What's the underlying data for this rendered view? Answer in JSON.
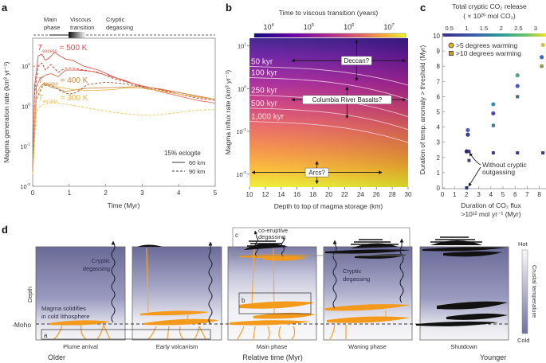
{
  "panels": {
    "a": {
      "label": "a"
    },
    "b": {
      "label": "b"
    },
    "c": {
      "label": "c"
    },
    "d": {
      "label": "d"
    }
  },
  "chart_data": [
    {
      "id": "a",
      "type": "line",
      "title": "",
      "xlabel": "Time (Myr)",
      "ylabel": "Magma generation rate (km³ yr⁻¹)",
      "yscale": "log",
      "xlim": [
        0,
        5
      ],
      "ylim": [
        0.01,
        50
      ],
      "xticks": [
        "0",
        "1",
        "2",
        "3",
        "4",
        "5"
      ],
      "yticks": [
        {
          "v": 10,
          "base": "10",
          "exp": "1"
        },
        {
          "v": 1,
          "base": "10",
          "exp": "0"
        },
        {
          "v": 0.1,
          "base": "10",
          "exp": "-1"
        },
        {
          "v": 0.01,
          "base": "10",
          "exp": "-2"
        }
      ],
      "phase_bar": {
        "labels": [
          [
            "Main",
            "phase"
          ],
          [
            "Viscous",
            "transition"
          ],
          [
            "Cryptic",
            "degassing"
          ]
        ]
      },
      "annotations": [
        {
          "text": "T",
          "sub": "excess",
          "rest": " = 500 K",
          "color": "#d9534a"
        },
        {
          "text": "T",
          "sub": "excess",
          "rest": " = 400 K",
          "color": "#c98a4a"
        },
        {
          "text": "T",
          "sub": "excess",
          "rest": " = 300 K",
          "color": "#e6b84a"
        }
      ],
      "legend": {
        "title": "15% eclogite",
        "entries": [
          {
            "label": "60 km",
            "style": "solid"
          },
          {
            "label": "90 km",
            "style": "dashed"
          }
        ],
        "placement": "bottom-right"
      },
      "series": [
        {
          "name": "500 K, 60 km",
          "color": "#d9534a",
          "dash": false,
          "x": [
            0,
            0.05,
            0.15,
            0.25,
            0.35,
            0.45,
            0.6,
            0.75,
            0.9,
            1.1,
            1.4,
            1.8,
            2.2,
            2.6,
            3.0,
            3.5,
            4.0,
            4.5,
            5.0
          ],
          "y": [
            0.02,
            3,
            18,
            20,
            14,
            16,
            22,
            18,
            15,
            14,
            10,
            8,
            5.5,
            4,
            3.2,
            2.6,
            2.2,
            1.8,
            1.5
          ]
        },
        {
          "name": "500 K, 90 km",
          "color": "#c0392b",
          "dash": true,
          "x": [
            0,
            0.05,
            0.15,
            0.25,
            0.35,
            0.5,
            0.7,
            0.9,
            1.1,
            1.4,
            1.8,
            2.2,
            2.6,
            3.0,
            3.5,
            4.0,
            4.5,
            5.0
          ],
          "y": [
            0.02,
            2,
            10,
            12,
            8,
            11,
            7,
            9,
            9,
            8,
            7,
            5,
            4,
            3.2,
            2.6,
            2.0,
            1.6,
            1.4
          ]
        },
        {
          "name": "500 K, 60 km (lower)",
          "color": "#e06a5a",
          "dash": false,
          "x": [
            0,
            0.1,
            0.2,
            0.35,
            0.5,
            0.7,
            0.9,
            1.2,
            1.6,
            2.0,
            2.5,
            3.0,
            3.5,
            4.0,
            4.5,
            5.0
          ],
          "y": [
            0.02,
            3,
            5,
            6,
            6.5,
            5.5,
            8,
            8,
            7.5,
            6,
            4.5,
            3,
            2.3,
            1.8,
            1.4,
            1.2
          ]
        },
        {
          "name": "400 K, 60 km",
          "color": "#c98a4a",
          "dash": false,
          "x": [
            0,
            0.1,
            0.2,
            0.3,
            0.5,
            0.7,
            0.9,
            1.0,
            1.2,
            1.5,
            2.0,
            2.5,
            3.0,
            3.5,
            4.0,
            4.5,
            5.0
          ],
          "y": [
            0.02,
            2,
            3,
            3.6,
            3.0,
            2.7,
            2.3,
            2.4,
            2.6,
            2.8,
            2.9,
            3,
            3.1,
            2.7,
            2.2,
            1.8,
            1.5
          ]
        },
        {
          "name": "400 K, 90 km",
          "color": "#a0522d",
          "dash": true,
          "x": [
            0,
            0.1,
            0.25,
            0.4,
            0.6,
            0.8,
            1.0,
            1.2,
            1.5,
            2.0,
            2.5,
            3.0,
            3.5,
            4.0,
            4.5,
            5.0
          ],
          "y": [
            0.02,
            1.5,
            3,
            3.5,
            3.0,
            2.3,
            2.0,
            2.2,
            3.5,
            4,
            3.7,
            3.0,
            2.4,
            2.0,
            1.7,
            1.5
          ]
        },
        {
          "name": "300 K, 60 km",
          "color": "#e6b84a",
          "dash": false,
          "x": [
            0,
            0.1,
            0.2,
            0.3,
            0.5,
            0.7,
            0.9,
            1.1,
            1.4,
            1.8,
            2.2,
            2.6,
            3.0,
            3.5,
            4.0,
            4.5,
            5.0
          ],
          "y": [
            0.02,
            2,
            3,
            3.8,
            3.4,
            3.0,
            2.8,
            2.6,
            2.5,
            2.5,
            2.6,
            2.9,
            2.8,
            2.4,
            2.0,
            1.7,
            1.5
          ]
        },
        {
          "name": "300 K, 90 km",
          "color": "#f0c850",
          "dash": true,
          "x": [
            0,
            0.1,
            0.2,
            0.35,
            0.5,
            0.7,
            1.0,
            1.5,
            2.0,
            2.5,
            3.0,
            3.5,
            4.0,
            4.5,
            5.0
          ],
          "y": [
            0.02,
            0.7,
            1.0,
            1.15,
            1.2,
            1.2,
            1.1,
            0.9,
            0.75,
            0.65,
            0.6,
            0.62,
            0.7,
            0.8,
            0.82
          ]
        }
      ]
    },
    {
      "id": "b",
      "type": "heatmap",
      "title": "Time to viscous transition (years)",
      "xlabel": "Depth to top of magma storage (km)",
      "ylabel": "Magma influx rate (km³ yr⁻¹)",
      "xlim": [
        10,
        30
      ],
      "ylim": [
        0.005,
        15
      ],
      "yscale": "log",
      "xticks": [
        "10",
        "12",
        "14",
        "16",
        "18",
        "20",
        "22",
        "24",
        "26",
        "28",
        "30"
      ],
      "yticks": [
        {
          "v": 10,
          "base": "10",
          "exp": "1"
        },
        {
          "v": 1,
          "base": "10",
          "exp": "0"
        },
        {
          "v": 0.1,
          "base": "10",
          "exp": "-1"
        },
        {
          "v": 0.01,
          "base": "10",
          "exp": "-2"
        }
      ],
      "colorbar": {
        "scale": "log",
        "range": [
          5000,
          30000000
        ],
        "ticks": [
          {
            "v": 10000,
            "base": "10",
            "exp": "4"
          },
          {
            "v": 100000,
            "base": "10",
            "exp": "5"
          },
          {
            "v": 1000000,
            "base": "10",
            "exp": "6"
          },
          {
            "v": 10000000,
            "base": "10",
            "exp": "7"
          }
        ],
        "colormap": "plasma"
      },
      "contours": [
        {
          "label": "50 kyr",
          "y_at_x10": 3.3,
          "y_at_x30": 1.2
        },
        {
          "label": "100 kyr",
          "y_at_x10": 1.8,
          "y_at_x30": 0.55
        },
        {
          "label": "250 kyr",
          "y_at_x10": 0.7,
          "y_at_x30": 0.22
        },
        {
          "label": "500 kyr",
          "y_at_x10": 0.35,
          "y_at_x30": 0.11
        },
        {
          "label": "1,000 kyr",
          "y_at_x10": 0.17,
          "y_at_x30": 0.055
        }
      ],
      "annotations": [
        {
          "text": "Deccan?",
          "x_range": [
            15,
            30
          ],
          "y": 4.5,
          "x_center": 23.5,
          "y_range": [
            1.5,
            14
          ]
        },
        {
          "text": "Columbia River Basalts?",
          "x_range": [
            15,
            30
          ],
          "y": 0.55,
          "x_center": 22.3,
          "y_range": [
            0.2,
            1.1
          ]
        },
        {
          "text": "Arcs?",
          "x_range": [
            10,
            27
          ],
          "y": 0.011,
          "x_center": 18.5,
          "y_range": [
            0.006,
            0.02
          ]
        }
      ]
    },
    {
      "id": "c",
      "type": "scatter",
      "title": "Total cryptic CO₂ release (× 10²⁰ mol CO₂)",
      "title_lines": [
        "Total cryptic CO₂ release",
        "( × 10²⁰ mol CO₂)"
      ],
      "xlabel_lines": [
        "Duration of CO₂ flux",
        ">10¹² mol yr⁻¹ (Myr)"
      ],
      "ylabel": "Duration of temp. anomaly > threshold (Myr)",
      "xlim": [
        0,
        8.3
      ],
      "ylim": [
        0,
        10
      ],
      "xticks": [
        "0",
        "1",
        "2",
        "3",
        "4",
        "5",
        "6",
        "7",
        "8"
      ],
      "yticks": [
        "0",
        "1",
        "2",
        "3",
        "4",
        "5",
        "6",
        "7",
        "8",
        "9",
        "10"
      ],
      "colorbar": {
        "range": [
          0.3,
          3.3
        ],
        "ticks": [
          "0.5",
          "1",
          "1.5",
          "2",
          "2.5",
          "3"
        ],
        "colormap": "viridis"
      },
      "legend": {
        "entries": [
          {
            "label": ">5 degrees warming",
            "marker": "circle"
          },
          {
            "label": ">10 degrees warming",
            "marker": "square"
          }
        ],
        "placement": "top"
      },
      "annotation": {
        "text": [
          "Without cryptic",
          "outgassing"
        ]
      },
      "points": [
        {
          "x": 2.1,
          "y": 3.8,
          "marker": "circle",
          "color": "#4c5cb8"
        },
        {
          "x": 2.1,
          "y": 3.5,
          "marker": "circle",
          "color": "#3b3a8f"
        },
        {
          "x": 2.0,
          "y": 2.4,
          "marker": "circle",
          "color": "#2e2a7a"
        },
        {
          "x": 2.2,
          "y": 2.4,
          "marker": "square",
          "color": "#3b3a8f"
        },
        {
          "x": 2.2,
          "y": 1.8,
          "marker": "square",
          "color": "#3b3a8f"
        },
        {
          "x": 2.0,
          "y": 0.0,
          "marker": "square",
          "color": "#2e2a7a"
        },
        {
          "x": 4.2,
          "y": 5.5,
          "marker": "circle",
          "color": "#3a8fb0"
        },
        {
          "x": 4.2,
          "y": 4.9,
          "marker": "circle",
          "color": "#4a4ab0"
        },
        {
          "x": 4.2,
          "y": 4.1,
          "marker": "square",
          "color": "#3a8a8f"
        },
        {
          "x": 4.2,
          "y": 2.3,
          "marker": "square",
          "color": "#3b3a8f"
        },
        {
          "x": 6.2,
          "y": 7.4,
          "marker": "circle",
          "color": "#5aa08a"
        },
        {
          "x": 6.2,
          "y": 6.7,
          "marker": "circle",
          "color": "#4a5cc0"
        },
        {
          "x": 6.2,
          "y": 6.0,
          "marker": "square",
          "color": "#3a7a7a"
        },
        {
          "x": 6.2,
          "y": 2.3,
          "marker": "square",
          "color": "#3b3a8f"
        },
        {
          "x": 8.3,
          "y": 9.4,
          "marker": "circle",
          "color": "#d4c040"
        },
        {
          "x": 8.2,
          "y": 8.6,
          "marker": "circle",
          "color": "#3a6ab8"
        },
        {
          "x": 8.2,
          "y": 8.0,
          "marker": "square",
          "color": "#9a9a40"
        },
        {
          "x": 8.3,
          "y": 2.3,
          "marker": "square",
          "color": "#3b3a8f"
        }
      ]
    }
  ],
  "diagram_d": {
    "stages": [
      "Plume arrival",
      "Early volcanism",
      "Main phase",
      "Waning phase",
      "Shutdown"
    ],
    "depth_label": "Depth",
    "moho_label": "-Moho",
    "older_label": "Older",
    "younger_label": "Younger",
    "time_label": "Relative time (Myr)",
    "cryptic_label_1": [
      "Cryptic",
      "degassing"
    ],
    "cryptic_label_2": [
      "Cryptic",
      "degassing"
    ],
    "solidify_label": [
      "Magma solidifies",
      "in cold lithosphere"
    ],
    "coeruptive_label": [
      "co-eruptive",
      "degassing"
    ],
    "box_labels": [
      "a",
      "b",
      "c"
    ],
    "colorbar": {
      "title": "Crustal temperature",
      "hot": "Hot",
      "cold": "Cold"
    },
    "colors": {
      "hot": "#f4f4f6",
      "cold": "#6e6e9a",
      "magma": "#f39a1c",
      "solid": "#111111"
    }
  }
}
